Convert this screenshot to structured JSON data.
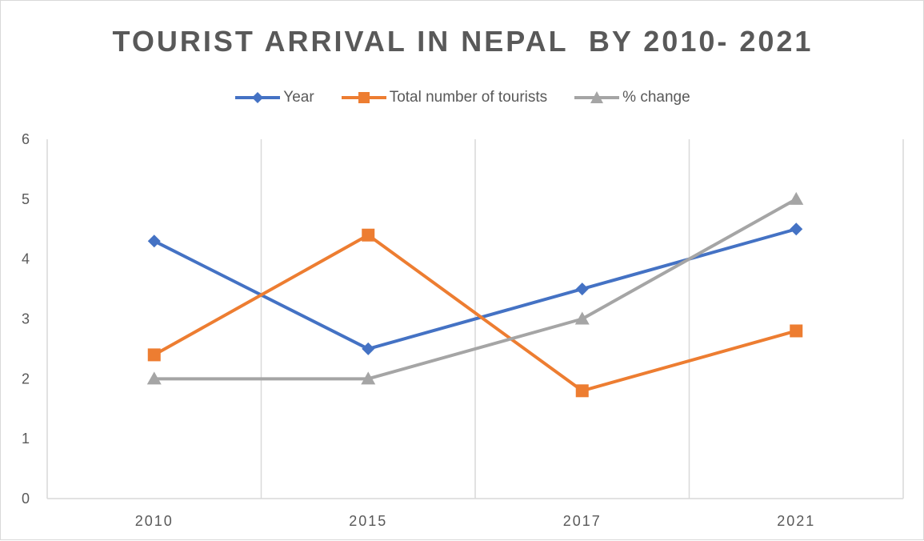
{
  "chart_data": {
    "type": "line",
    "title": "TOURIST ARRIVAL IN NEPAL  BY 2010- 2021",
    "xlabel": "",
    "ylabel": "",
    "categories": [
      "2010",
      "2015",
      "2017",
      "2021"
    ],
    "ylim": [
      0,
      6
    ],
    "yticks": [
      "0",
      "1",
      "2",
      "3",
      "4",
      "5",
      "6"
    ],
    "grid": "vertical",
    "legend_position": "top",
    "series": [
      {
        "name": "Year",
        "values": [
          4.3,
          2.5,
          3.5,
          4.5
        ],
        "color": "#4472C4",
        "marker": "diamond"
      },
      {
        "name": "Total number of tourists",
        "values": [
          2.4,
          4.4,
          1.8,
          2.8
        ],
        "color": "#ED7D31",
        "marker": "square"
      },
      {
        "name": "% change",
        "values": [
          2,
          2,
          3,
          5
        ],
        "color": "#A5A5A5",
        "marker": "triangle"
      }
    ]
  }
}
